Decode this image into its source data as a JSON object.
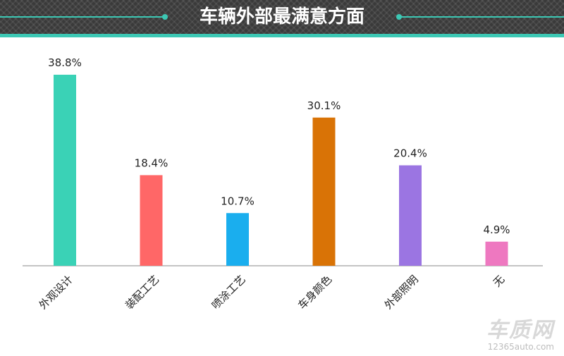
{
  "title": "车辆外部最满意方面",
  "watermark": {
    "main": "车质网",
    "sub": "12365auto.com"
  },
  "chart_data": {
    "type": "bar",
    "title": "车辆外部最满意方面",
    "xlabel": "",
    "ylabel": "",
    "ylim": [
      0,
      40
    ],
    "grid": false,
    "legend": "none",
    "categories": [
      "外观设计",
      "装配工艺",
      "喷涂工艺",
      "车身颜色",
      "外部照明",
      "无"
    ],
    "values": [
      38.8,
      18.4,
      10.7,
      30.1,
      20.4,
      4.9
    ],
    "value_labels": [
      "38.8%",
      "18.4%",
      "10.7%",
      "30.1%",
      "20.4%",
      "4.9%"
    ],
    "colors": [
      "#3ad2b6",
      "#ff6767",
      "#1aaeee",
      "#d97306",
      "#9b75e2",
      "#ee78c0"
    ]
  },
  "colors": {
    "header_bg": "#3a3a3a",
    "accent": "#3cc8b4",
    "axis": "#888888"
  }
}
